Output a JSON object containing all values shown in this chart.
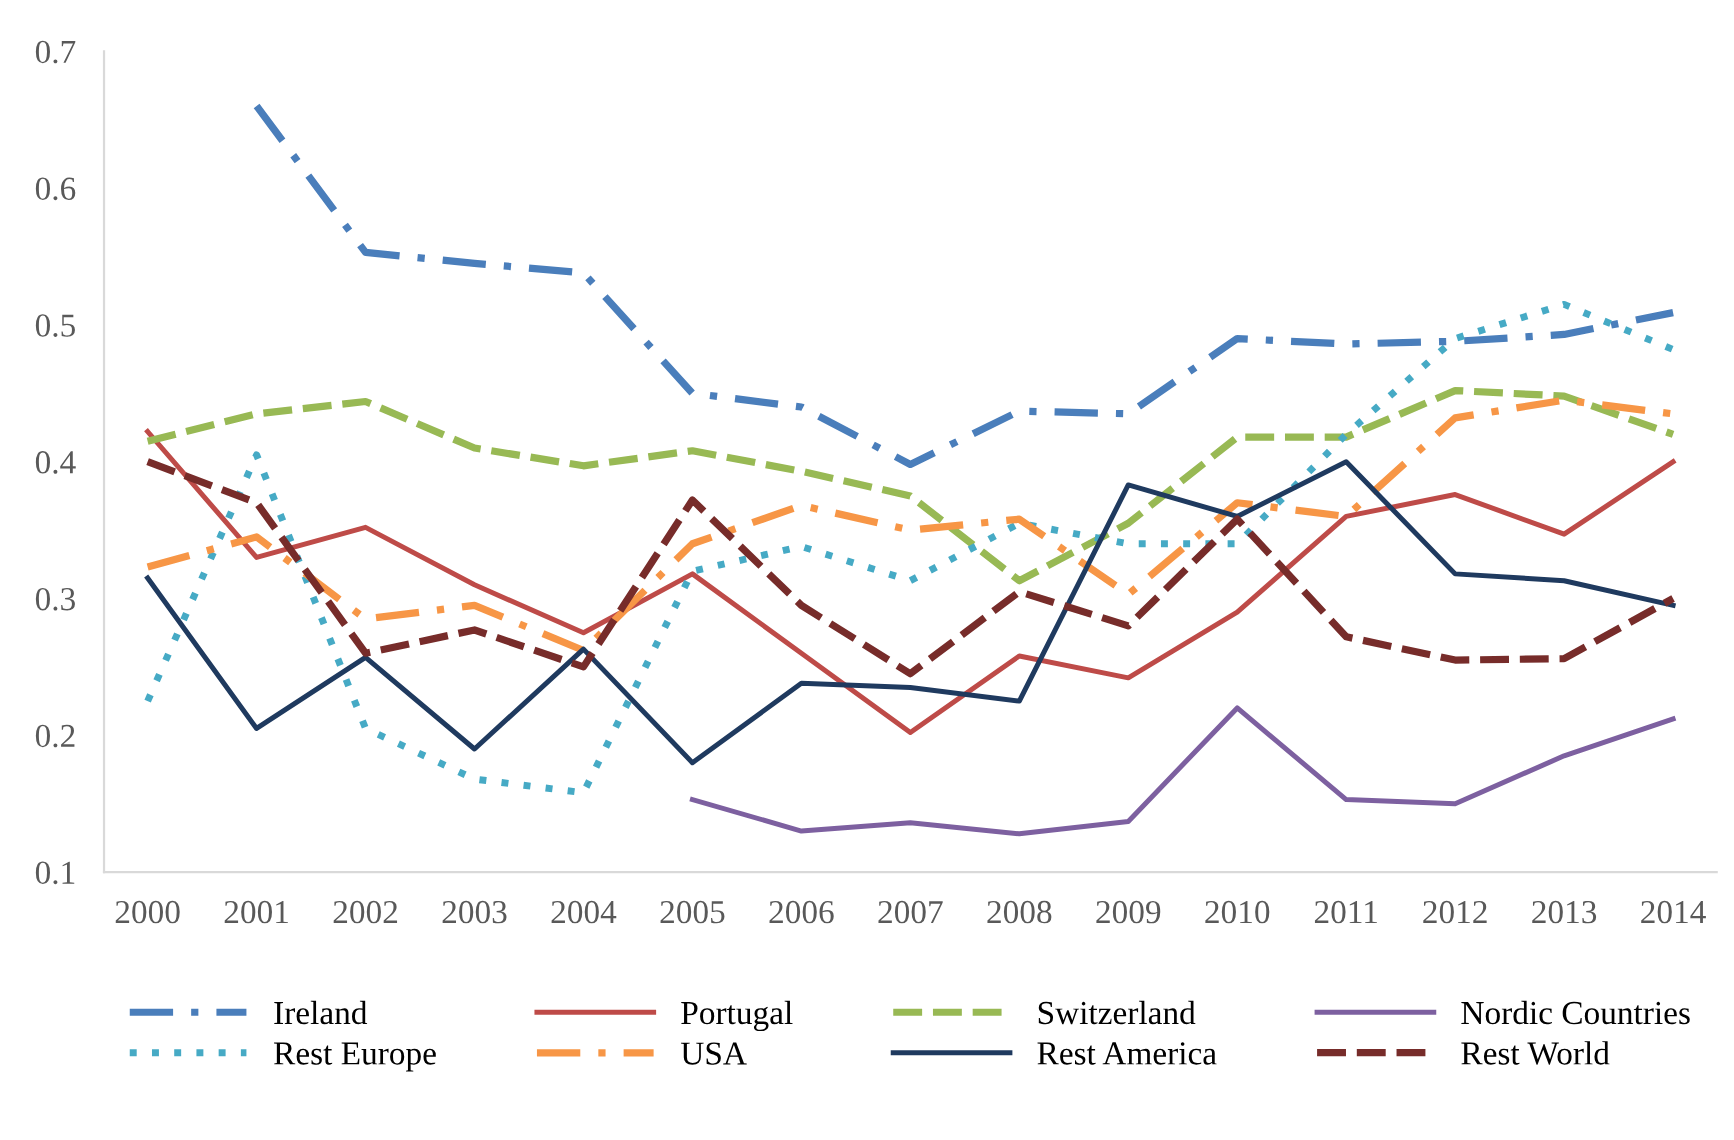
{
  "chart_data": {
    "type": "line",
    "categories": [
      "2000",
      "2001",
      "2002",
      "2003",
      "2004",
      "2005",
      "2006",
      "2007",
      "2008",
      "2009",
      "2010",
      "2011",
      "2012",
      "2013",
      "2014"
    ],
    "ylim": [
      0.1,
      0.7
    ],
    "yticks": [
      0.1,
      0.2,
      0.3,
      0.4,
      0.5,
      0.6,
      0.7
    ],
    "grid": false,
    "legend": "bottom",
    "marker": "none",
    "series": [
      {
        "name": "Ireland",
        "color": "#4a7ebb",
        "line_style": "dashdot",
        "values": [
          null,
          0.66,
          0.553,
          0.545,
          0.538,
          0.45,
          0.44,
          0.398,
          0.437,
          0.435,
          0.49,
          0.486,
          0.488,
          0.493,
          0.509
        ]
      },
      {
        "name": "Portugal",
        "color": "#be4b48",
        "line_style": "solid",
        "values": [
          0.422,
          0.33,
          0.352,
          0.31,
          0.275,
          0.318,
          0.26,
          0.202,
          0.258,
          0.242,
          0.29,
          0.36,
          0.376,
          0.347,
          0.4
        ]
      },
      {
        "name": "Switzerland",
        "color": "#98b954",
        "line_style": "dashed",
        "values": [
          0.415,
          0.435,
          0.444,
          0.41,
          0.397,
          0.408,
          0.393,
          0.375,
          0.313,
          0.355,
          0.418,
          0.418,
          0.452,
          0.448,
          0.42
        ]
      },
      {
        "name": "Nordic Countries",
        "color": "#7d60a0",
        "line_style": "solid",
        "values": [
          null,
          null,
          null,
          null,
          null,
          0.153,
          0.13,
          0.136,
          0.128,
          0.137,
          0.22,
          0.153,
          0.15,
          0.185,
          0.212
        ]
      },
      {
        "name": "Rest Europe",
        "color": "#46aac5",
        "line_style": "dotted",
        "values": [
          0.225,
          0.405,
          0.205,
          0.168,
          0.158,
          0.32,
          0.338,
          0.313,
          0.355,
          0.34,
          0.34,
          0.42,
          0.49,
          0.515,
          0.482
        ]
      },
      {
        "name": "USA",
        "color": "#f79646",
        "line_style": "dashdot",
        "values": [
          0.323,
          0.345,
          0.285,
          0.295,
          0.262,
          0.34,
          0.368,
          0.35,
          0.358,
          0.303,
          0.37,
          0.36,
          0.432,
          0.445,
          0.435
        ]
      },
      {
        "name": "Rest America",
        "color": "#1f3a5f",
        "line_style": "solid",
        "values": [
          0.315,
          0.205,
          0.257,
          0.19,
          0.263,
          0.18,
          0.238,
          0.235,
          0.225,
          0.383,
          0.36,
          0.4,
          0.318,
          0.313,
          0.295
        ]
      },
      {
        "name": "Rest World",
        "color": "#772c2a",
        "line_style": "dashed",
        "values": [
          0.4,
          0.37,
          0.26,
          0.277,
          0.25,
          0.372,
          0.295,
          0.245,
          0.305,
          0.28,
          0.358,
          0.272,
          0.255,
          0.256,
          0.3
        ]
      }
    ]
  }
}
